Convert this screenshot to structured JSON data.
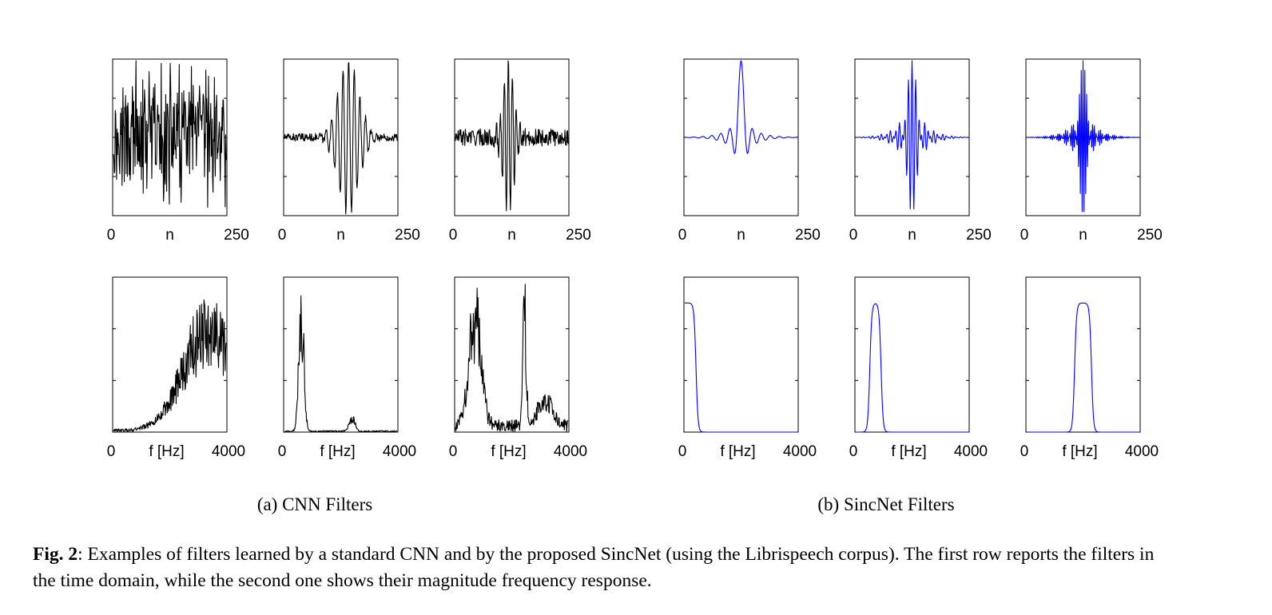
{
  "figure": {
    "subcaption_a": "(a) CNN Filters",
    "subcaption_b": "(b) SincNet Filters",
    "caption_label": "Fig. 2",
    "caption_text": ": Examples of filters learned by a standard CNN and by the proposed SincNet (using the Librispeech corpus). The first row reports the filters in the time domain, while the second one shows their magnitude frequency response."
  },
  "chart_data": [
    {
      "type": "line",
      "group": "CNN Filters",
      "row": "time",
      "color": "#000000",
      "x_ticks": [
        "0",
        "n",
        "250"
      ],
      "xlim": [
        0,
        250
      ],
      "ylim": [
        -1,
        1
      ],
      "series": [
        {
          "shape": "noise",
          "values": []
        }
      ]
    },
    {
      "type": "line",
      "group": "CNN Filters",
      "row": "time",
      "color": "#000000",
      "x_ticks": [
        "0",
        "n",
        "250"
      ],
      "xlim": [
        0,
        250
      ],
      "ylim": [
        -1,
        1
      ],
      "series": [
        {
          "shape": "wavelet",
          "center": 0.57,
          "width": 0.09,
          "cycles": 20,
          "noise": 0.05
        }
      ]
    },
    {
      "type": "line",
      "group": "CNN Filters",
      "row": "time",
      "color": "#000000",
      "x_ticks": [
        "0",
        "n",
        "250"
      ],
      "xlim": [
        0,
        250
      ],
      "ylim": [
        -1,
        1
      ],
      "series": [
        {
          "shape": "wavelet",
          "center": 0.47,
          "width": 0.05,
          "cycles": 28,
          "noise": 0.12
        }
      ]
    },
    {
      "type": "line",
      "group": "SincNet Filters",
      "row": "time",
      "color": "#0000ff",
      "x_ticks": [
        "0",
        "n",
        "250"
      ],
      "xlim": [
        0,
        250
      ],
      "ylim": [
        -1,
        1
      ],
      "series": [
        {
          "shape": "sinc",
          "center": 0.5,
          "f_low": 0.0,
          "f_high": 0.1
        }
      ]
    },
    {
      "type": "line",
      "group": "SincNet Filters",
      "row": "time",
      "color": "#0000ff",
      "x_ticks": [
        "0",
        "n",
        "250"
      ],
      "xlim": [
        0,
        250
      ],
      "ylim": [
        -1,
        1
      ],
      "series": [
        {
          "shape": "sinc",
          "center": 0.5,
          "f_low": 0.2,
          "f_high": 0.3
        }
      ]
    },
    {
      "type": "line",
      "group": "SincNet Filters",
      "row": "time",
      "color": "#0000ff",
      "x_ticks": [
        "0",
        "n",
        "250"
      ],
      "xlim": [
        0,
        250
      ],
      "ylim": [
        -1,
        1
      ],
      "series": [
        {
          "shape": "sinc",
          "center": 0.5,
          "f_low": 0.45,
          "f_high": 0.58
        }
      ]
    },
    {
      "type": "line",
      "group": "CNN Filters",
      "row": "frequency",
      "color": "#000000",
      "x_ticks": [
        "0",
        "f [Hz]",
        "4000"
      ],
      "xlim": [
        0,
        4000
      ],
      "ylim": [
        0,
        1
      ],
      "series": [
        {
          "shape": "spectrum",
          "peaks": [
            [
              3400,
              0.9,
              900
            ]
          ],
          "floor": 0.02
        }
      ]
    },
    {
      "type": "line",
      "group": "CNN Filters",
      "row": "frequency",
      "color": "#000000",
      "x_ticks": [
        "0",
        "f [Hz]",
        "4000"
      ],
      "xlim": [
        0,
        4000
      ],
      "ylim": [
        0,
        1
      ],
      "series": [
        {
          "shape": "spectrum",
          "peaks": [
            [
              600,
              1.0,
              90
            ],
            [
              2400,
              0.12,
              100
            ]
          ],
          "floor": 0.01
        }
      ]
    },
    {
      "type": "line",
      "group": "CNN Filters",
      "row": "frequency",
      "color": "#000000",
      "x_ticks": [
        "0",
        "f [Hz]",
        "4000"
      ],
      "xlim": [
        0,
        4000
      ],
      "ylim": [
        0,
        1
      ],
      "series": [
        {
          "shape": "spectrum",
          "peaks": [
            [
              700,
              0.92,
              220
            ],
            [
              2450,
              1.0,
              60
            ],
            [
              3200,
              0.25,
              250
            ]
          ],
          "floor": 0.08
        }
      ]
    },
    {
      "type": "line",
      "group": "SincNet Filters",
      "row": "frequency",
      "color": "#0000ff",
      "x_ticks": [
        "0",
        "f [Hz]",
        "4000"
      ],
      "xlim": [
        0,
        4000
      ],
      "ylim": [
        0,
        1.2
      ],
      "series": [
        {
          "shape": "bandpass",
          "f_low": 0,
          "f_high": 400
        }
      ]
    },
    {
      "type": "line",
      "group": "SincNet Filters",
      "row": "frequency",
      "color": "#0000ff",
      "x_ticks": [
        "0",
        "f [Hz]",
        "4000"
      ],
      "xlim": [
        0,
        4000
      ],
      "ylim": [
        0,
        1.2
      ],
      "series": [
        {
          "shape": "bandpass",
          "f_low": 500,
          "f_high": 900
        }
      ]
    },
    {
      "type": "line",
      "group": "SincNet Filters",
      "row": "frequency",
      "color": "#0000ff",
      "x_ticks": [
        "0",
        "f [Hz]",
        "4000"
      ],
      "xlim": [
        0,
        4000
      ],
      "ylim": [
        0,
        1.2
      ],
      "series": [
        {
          "shape": "bandpass",
          "f_low": 1700,
          "f_high": 2300
        }
      ]
    }
  ]
}
